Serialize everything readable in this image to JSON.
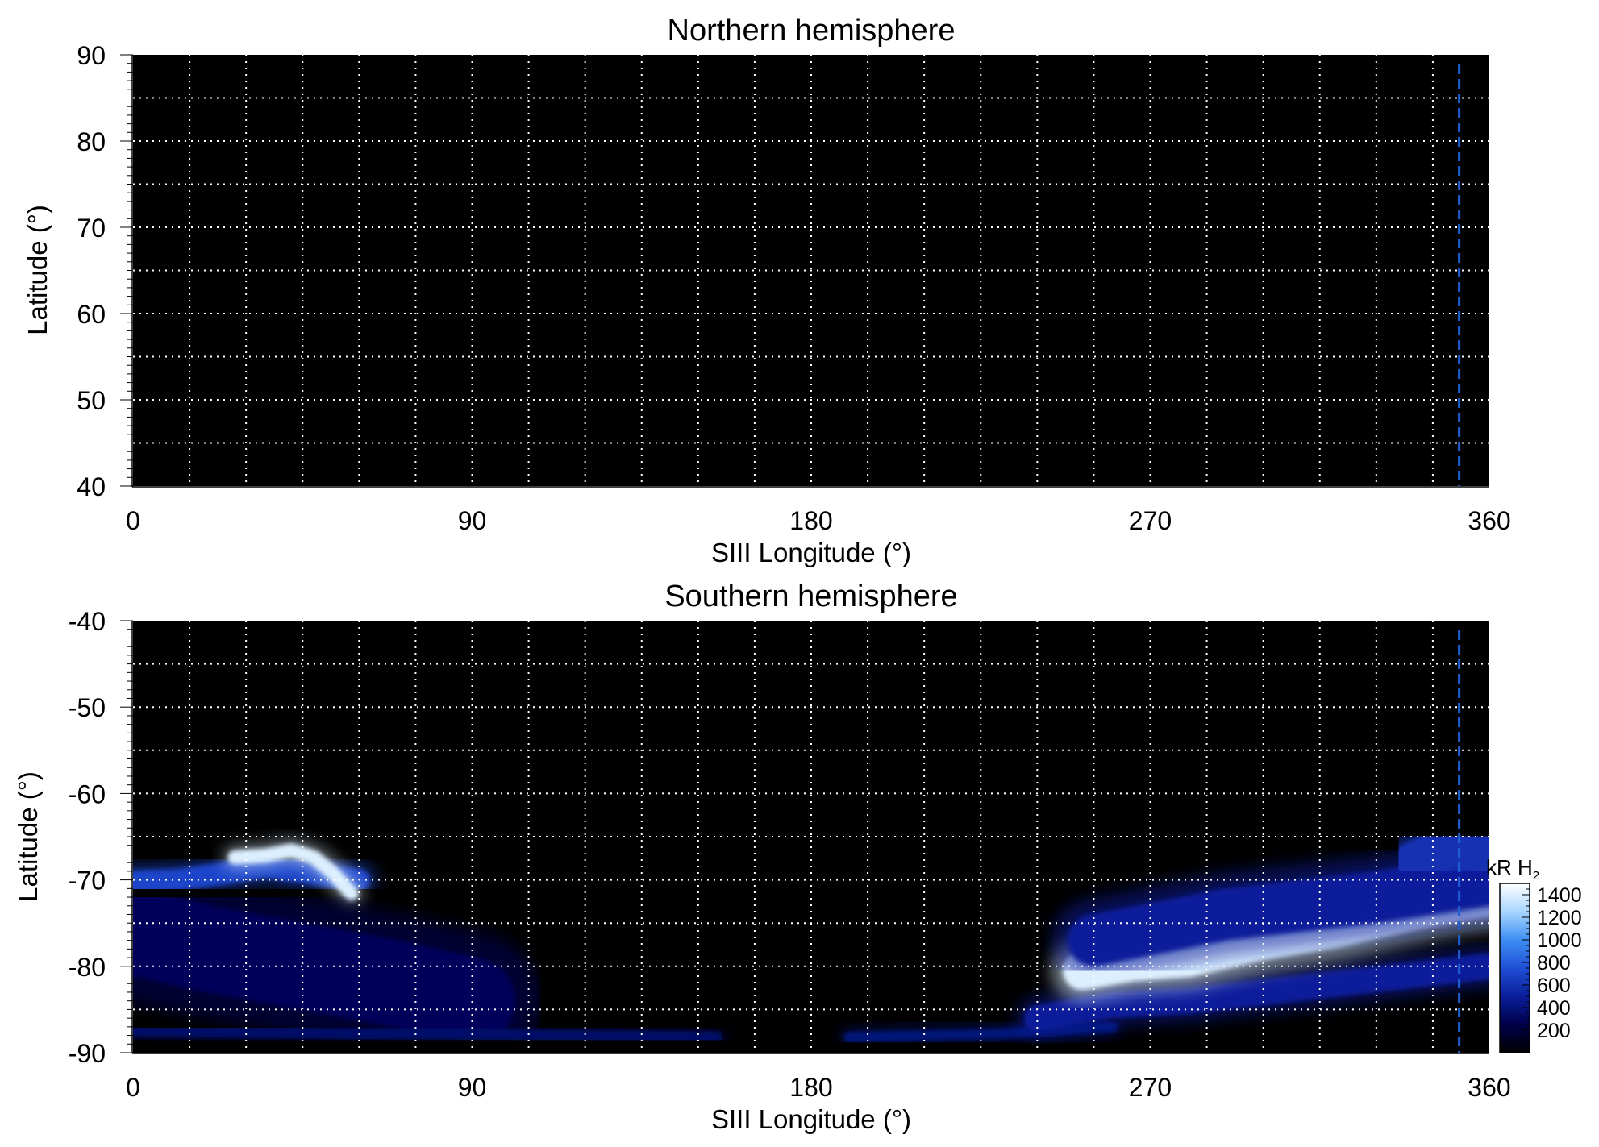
{
  "chart_data": [
    {
      "type": "heatmap",
      "title": "Northern hemisphere",
      "xlabel": "SIII Longitude (°)",
      "ylabel": "Latitude (°)",
      "xlim": [
        0,
        360
      ],
      "ylim": [
        40,
        90
      ],
      "xticks": [
        0,
        90,
        180,
        270,
        360
      ],
      "yticks": [
        40,
        50,
        60,
        70,
        80,
        90
      ],
      "grid_x_step": 15,
      "grid_y_step": 5,
      "grid": true,
      "reference_longitude": 352,
      "emission_regions": []
    },
    {
      "type": "heatmap",
      "title": "Southern hemisphere",
      "xlabel": "SIII Longitude (°)",
      "ylabel": "Latitude (°)",
      "xlim": [
        0,
        360
      ],
      "ylim": [
        -90,
        -40
      ],
      "xticks": [
        0,
        90,
        180,
        270,
        360
      ],
      "yticks": [
        -90,
        -80,
        -70,
        -60,
        -50,
        -40
      ],
      "grid_x_step": 15,
      "grid_y_step": 5,
      "grid": true,
      "reference_longitude": 352,
      "emission_regions": [
        {
          "lon": [
            0,
            12,
            20,
            28,
            35,
            60
          ],
          "lat": [
            -70.2,
            -70,
            -69.5,
            -69,
            -68.5,
            -70
          ],
          "value": 700,
          "width": 2.5
        },
        {
          "lon": [
            27,
            35,
            42,
            48,
            53,
            58
          ],
          "lat": [
            -67.4,
            -67.2,
            -66.6,
            -67.4,
            -69.2,
            -71.6
          ],
          "value": 1400,
          "width": 1.6
        },
        {
          "lon": [
            0,
            20,
            45,
            70,
            90
          ],
          "lat": [
            -76,
            -78,
            -80,
            -82,
            -84
          ],
          "value": 300,
          "width": 10
        },
        {
          "lon": [
            0,
            60,
            120,
            155
          ],
          "lat": [
            -87.5,
            -87.8,
            -88,
            -88.2
          ],
          "value": 350,
          "width": 1.2
        },
        {
          "lon": [
            190,
            230,
            260
          ],
          "lat": [
            -88.2,
            -87.8,
            -87
          ],
          "value": 400,
          "width": 1.2
        },
        {
          "lon": [
            240,
            260,
            280,
            300,
            320,
            340,
            360
          ],
          "lat": [
            -86,
            -84.5,
            -84,
            -83,
            -82,
            -81,
            -80
          ],
          "value": 500,
          "width": 3
        },
        {
          "lon": [
            252,
            265,
            280,
            300,
            320,
            340,
            352,
            360
          ],
          "lat": [
            -80.5,
            -79.5,
            -79,
            -77,
            -75.5,
            -73.5,
            -72.5,
            -72
          ],
          "value": 1400,
          "width": 4.5
        },
        {
          "lon": [
            255,
            290,
            330,
            360
          ],
          "lat": [
            -77,
            -74,
            -72,
            -70
          ],
          "value": 500,
          "width": 6
        },
        {
          "lon": [
            340,
            350,
            360
          ],
          "lat": [
            -68,
            -66,
            -67
          ],
          "value": 600,
          "width": 5
        }
      ],
      "colorbar": {
        "label": "kR H",
        "label_subscript": "2",
        "range": [
          0,
          1500
        ],
        "ticks": [
          200,
          400,
          600,
          800,
          1000,
          1200,
          1400
        ]
      }
    }
  ],
  "colors": {
    "background": "#000000",
    "grid": "#ffffff",
    "reference_line": "#1e5fd6",
    "colormap": [
      "#000000",
      "#00004a",
      "#0a1e9a",
      "#1f4fd6",
      "#3f8ef4",
      "#a7d6ff",
      "#ffffff"
    ]
  }
}
